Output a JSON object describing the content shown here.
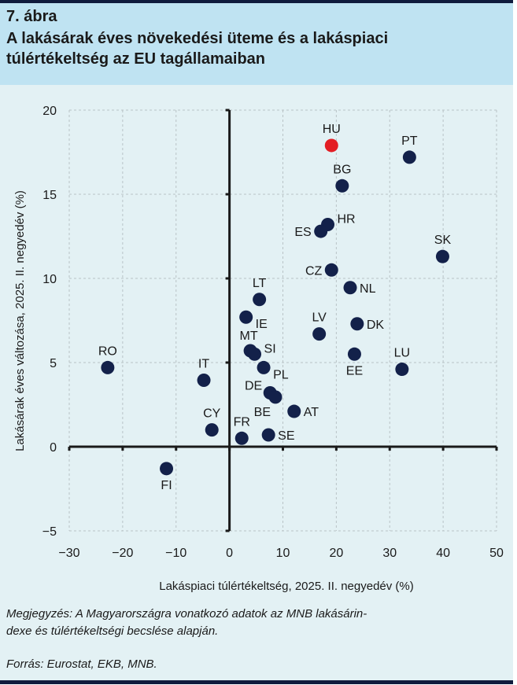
{
  "header": {
    "figure_number": "7. ábra",
    "title_line1": "A lakásárak éves növekedési üteme és a lakáspiaci",
    "title_line2": "túlértékeltség az EU tagállamaiban"
  },
  "footer": {
    "note_line1": "Megjegyzés: A Magyarországra vonatkozó adatok az MNB lakásárin-",
    "note_line2": "dexe és túlértékeltségi becslése alapján.",
    "source": "Forrás: Eurostat, EKB, MNB."
  },
  "colors": {
    "point": "#13214a",
    "highlight": "#e31e24",
    "axis": "#1a1a1a",
    "grid": "#b9c3c6"
  },
  "chart_data": {
    "type": "scatter",
    "title": "A lakásárak éves növekedési üteme és a lakáspiaci túlértékeltség az EU tagállamaiban",
    "xlabel": "Lakáspiaci túlértékeltség, 2025. II. negyedév (%)",
    "ylabel": "Lakásárak éves változása, 2025. II. negyedév (%)",
    "xlim": [
      -30,
      50
    ],
    "ylim": [
      -5,
      20
    ],
    "xticks": [
      -30,
      -20,
      -10,
      0,
      10,
      20,
      30,
      40,
      50
    ],
    "yticks": [
      -5,
      0,
      5,
      10,
      15,
      20
    ],
    "xtick_labels": [
      "−30",
      "−20",
      "−10",
      "0",
      "10",
      "20",
      "30",
      "40",
      "50"
    ],
    "ytick_labels": [
      "−5",
      "0",
      "5",
      "10",
      "15",
      "20"
    ],
    "grid": true,
    "points": [
      {
        "label": "HU",
        "x": 19.1,
        "y": 17.9,
        "highlight": true,
        "label_pos": "top"
      },
      {
        "label": "PT",
        "x": 33.7,
        "y": 17.2,
        "label_pos": "top"
      },
      {
        "label": "BG",
        "x": 21.1,
        "y": 15.5,
        "label_pos": "top"
      },
      {
        "label": "HR",
        "x": 18.4,
        "y": 13.2,
        "label_pos": "right-up"
      },
      {
        "label": "ES",
        "x": 17.1,
        "y": 12.8,
        "label_pos": "left"
      },
      {
        "label": "SK",
        "x": 39.9,
        "y": 11.3,
        "label_pos": "top"
      },
      {
        "label": "CZ",
        "x": 19.1,
        "y": 10.5,
        "label_pos": "left"
      },
      {
        "label": "NL",
        "x": 22.6,
        "y": 9.45,
        "label_pos": "right"
      },
      {
        "label": "LT",
        "x": 5.6,
        "y": 8.75,
        "label_pos": "top"
      },
      {
        "label": "IE",
        "x": 3.1,
        "y": 7.7,
        "label_pos": "right-down"
      },
      {
        "label": "DK",
        "x": 23.9,
        "y": 7.3,
        "label_pos": "right"
      },
      {
        "label": "LV",
        "x": 16.8,
        "y": 6.7,
        "label_pos": "top"
      },
      {
        "label": "MT",
        "x": 3.9,
        "y": 5.7,
        "label_pos": "top-left"
      },
      {
        "label": "SI",
        "x": 4.7,
        "y": 5.5,
        "label_pos": "right-up"
      },
      {
        "label": "EE",
        "x": 23.4,
        "y": 5.5,
        "label_pos": "bottom"
      },
      {
        "label": "LU",
        "x": 32.3,
        "y": 4.6,
        "label_pos": "top"
      },
      {
        "label": "PL",
        "x": 6.4,
        "y": 4.7,
        "label_pos": "right-down"
      },
      {
        "label": "RO",
        "x": -22.8,
        "y": 4.7,
        "label_pos": "top"
      },
      {
        "label": "IT",
        "x": -4.8,
        "y": 3.95,
        "label_pos": "top"
      },
      {
        "label": "DE",
        "x": 7.6,
        "y": 3.2,
        "label_pos": "left-up"
      },
      {
        "label": "BE",
        "x": 8.6,
        "y": 2.95,
        "label_pos": "bottom-left"
      },
      {
        "label": "AT",
        "x": 12.1,
        "y": 2.1,
        "label_pos": "right"
      },
      {
        "label": "CY",
        "x": -3.3,
        "y": 1.0,
        "label_pos": "top"
      },
      {
        "label": "SE",
        "x": 7.3,
        "y": 0.7,
        "label_pos": "right"
      },
      {
        "label": "FR",
        "x": 2.3,
        "y": 0.5,
        "label_pos": "top"
      },
      {
        "label": "FI",
        "x": -11.8,
        "y": -1.3,
        "label_pos": "bottom"
      }
    ]
  }
}
